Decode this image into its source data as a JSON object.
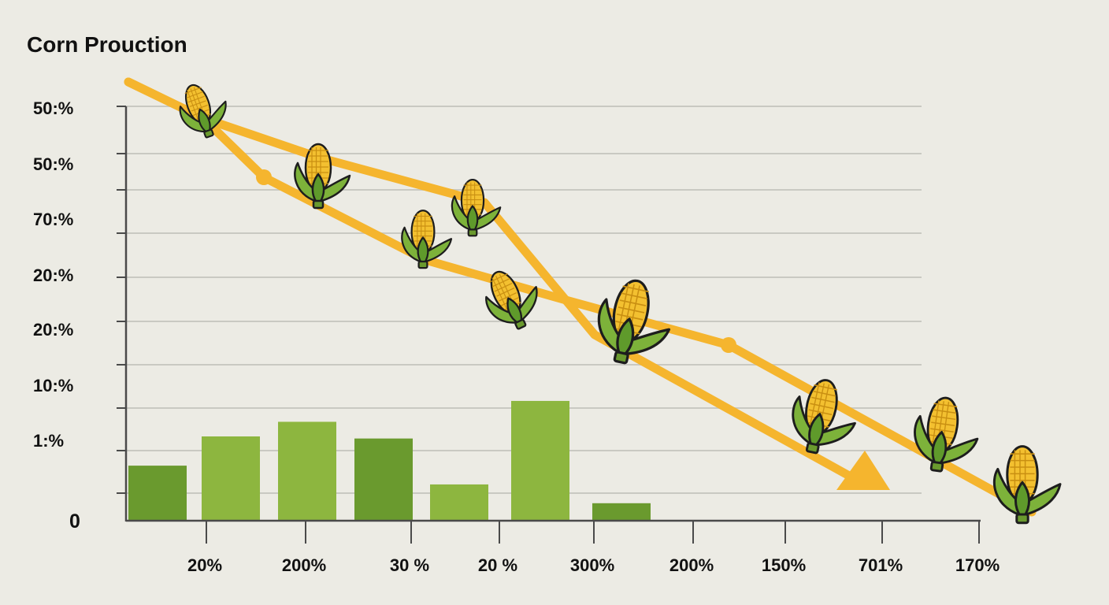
{
  "chart_data": {
    "type": "bar",
    "title": "Corn Prouction",
    "xlabel": "",
    "ylabel": "",
    "y_tick_labels": [
      "50:%",
      "50:%",
      "70:%",
      "20:%",
      "20:%",
      "10:%",
      "1:%",
      "0"
    ],
    "x_tick_labels": [
      "20%",
      "200%",
      "30 %",
      "20 %",
      "300%",
      "200%",
      "150%",
      "701%",
      "170%"
    ],
    "ylim": [
      0,
      10
    ],
    "grid": true,
    "series": [
      {
        "name": "bars",
        "type": "bar",
        "values": [
          1.3,
          2.0,
          2.35,
          1.95,
          0.85,
          2.85,
          0.4
        ]
      },
      {
        "name": "trend-line-a",
        "type": "line",
        "values": [
          10.4,
          9.55,
          8.6,
          7.75,
          7.1,
          6.3,
          5.2,
          4.4,
          2.9
        ]
      },
      {
        "name": "trend-line-b",
        "type": "line",
        "values": [
          10.4,
          8.4,
          6.55,
          5.15,
          3.8,
          2.7,
          1.1
        ]
      }
    ],
    "markers": [
      {
        "series": "trend-line-a",
        "label": "corn",
        "x": 0.3,
        "y": 9.6
      },
      {
        "series": "trend-line-a",
        "label": "corn",
        "x": 1.55,
        "y": 8.4
      },
      {
        "series": "trend-line-a",
        "label": "corn",
        "x": 3.4,
        "y": 7.6
      },
      {
        "series": "trend-line-a",
        "label": "corn",
        "x": 5.5,
        "y": 5.8
      },
      {
        "series": "trend-line-a",
        "label": "corn",
        "x": 7.7,
        "y": 3.0
      },
      {
        "series": "trend-line-b",
        "label": "corn",
        "x": 2.35,
        "y": 6.8
      },
      {
        "series": "trend-line-b",
        "label": "corn",
        "x": 3.9,
        "y": 5.4
      },
      {
        "series": "trend-line-b",
        "label": "corn",
        "x": 8.5,
        "y": 1.1
      },
      {
        "series": "trend-line-b",
        "label": "corn",
        "x": 10.1,
        "y": 1.2
      }
    ],
    "colors": {
      "line": "#f5b52e",
      "bar_dark": "#6a9a2e",
      "bar_light": "#8db63f",
      "grid": "#c9c9c2",
      "axis": "#4a4a4a",
      "kernel": "#f3c030",
      "husk": "#7db23a"
    }
  }
}
